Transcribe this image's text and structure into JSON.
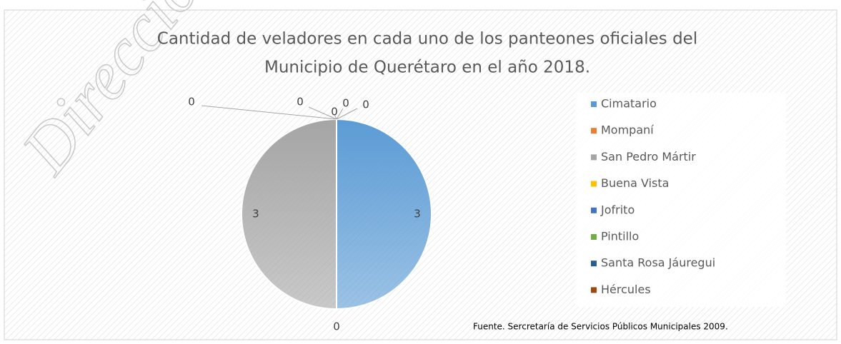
{
  "chart_data": {
    "type": "pie",
    "title": [
      "Cantidad de veladores en cada uno de los panteones oficiales del",
      "Municipio de Querétaro en el año 2018."
    ],
    "categories": [
      "Cimatario",
      "Mompaní",
      "San Pedro Mártir",
      "Buena Vista",
      "Jofrito",
      "Pintillo",
      "Santa Rosa Jáuregui",
      "Hércules"
    ],
    "values": [
      3,
      0,
      3,
      0,
      0,
      0,
      0,
      0
    ],
    "colors": [
      "#5b9bd5",
      "#ed7d31",
      "#a5a5a5",
      "#ffc000",
      "#4472c4",
      "#70ad47",
      "#255e91",
      "#9e480e"
    ],
    "legend": "right",
    "note": "Fuente. Sercretaría de Servicios Públicos Municipales 2009.",
    "watermark": "Dirección"
  }
}
